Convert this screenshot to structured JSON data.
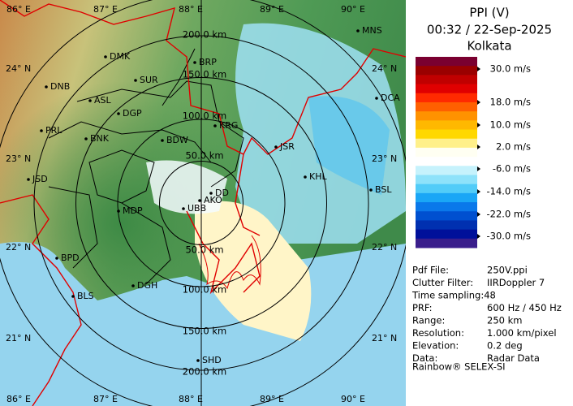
{
  "panel": {
    "title": "PPI (V)",
    "time": "00:32 / 22-Sep-2025",
    "site": "Kolkata"
  },
  "legend": {
    "labels": [
      "30.0 m/s",
      "18.0 m/s",
      "10.0 m/s",
      "2.0 m/s",
      "-6.0 m/s",
      "-14.0 m/s",
      "-22.0 m/s",
      "-30.0 m/s"
    ],
    "colors": [
      "#7a0030",
      "#9a0000",
      "#c00000",
      "#e00000",
      "#ff2a00",
      "#ff6000",
      "#ff9200",
      "#ffb800",
      "#ffd800",
      "#fff08a",
      "#fffff2",
      "#ffffff",
      "#c6f2fc",
      "#8ee2fa",
      "#52ccf8",
      "#1aa6f6",
      "#0a78ea",
      "#0050d0",
      "#0030b0",
      "#00109a",
      "#3a1e8c"
    ]
  },
  "info": {
    "rows": [
      [
        "Pdf File:",
        "250V.ppi"
      ],
      [
        "Clutter Filter:",
        "IIRDoppler 7"
      ],
      [
        "Time sampling:48"
      ],
      [
        "PRF:",
        "600 Hz / 450 Hz"
      ],
      [
        "Range:",
        "250 km"
      ],
      [
        "Resolution:",
        "1.000 km/pixel"
      ],
      [
        "Elevation:",
        "0.2 deg"
      ],
      [
        "Data:",
        "Radar Data"
      ]
    ],
    "footer": "Rainbow® SELEX-SI"
  },
  "map": {
    "range_labels": [
      "200.0 km",
      "150.0 km",
      "100.0 km",
      "50.0 km",
      "50.0 km",
      "100.0 km",
      "150.0 km",
      "200.0 km"
    ],
    "latitudes": [
      "24° N",
      "23° N",
      "22° N",
      "21° N"
    ],
    "longitudes": [
      "86° E",
      "87° E",
      "88° E",
      "89° E",
      "90° E"
    ],
    "stations": [
      "MNS",
      "DMK",
      "BRP",
      "DNB",
      "ASL",
      "SUR",
      "DCA",
      "DGP",
      "PRL",
      "BNK",
      "KRG",
      "BDW",
      "JSR",
      "JSD",
      "KHL",
      "DD",
      "AKO",
      "BSL",
      "MDP",
      "UBB",
      "BPD",
      "DGH",
      "BLS",
      "SHD"
    ]
  }
}
